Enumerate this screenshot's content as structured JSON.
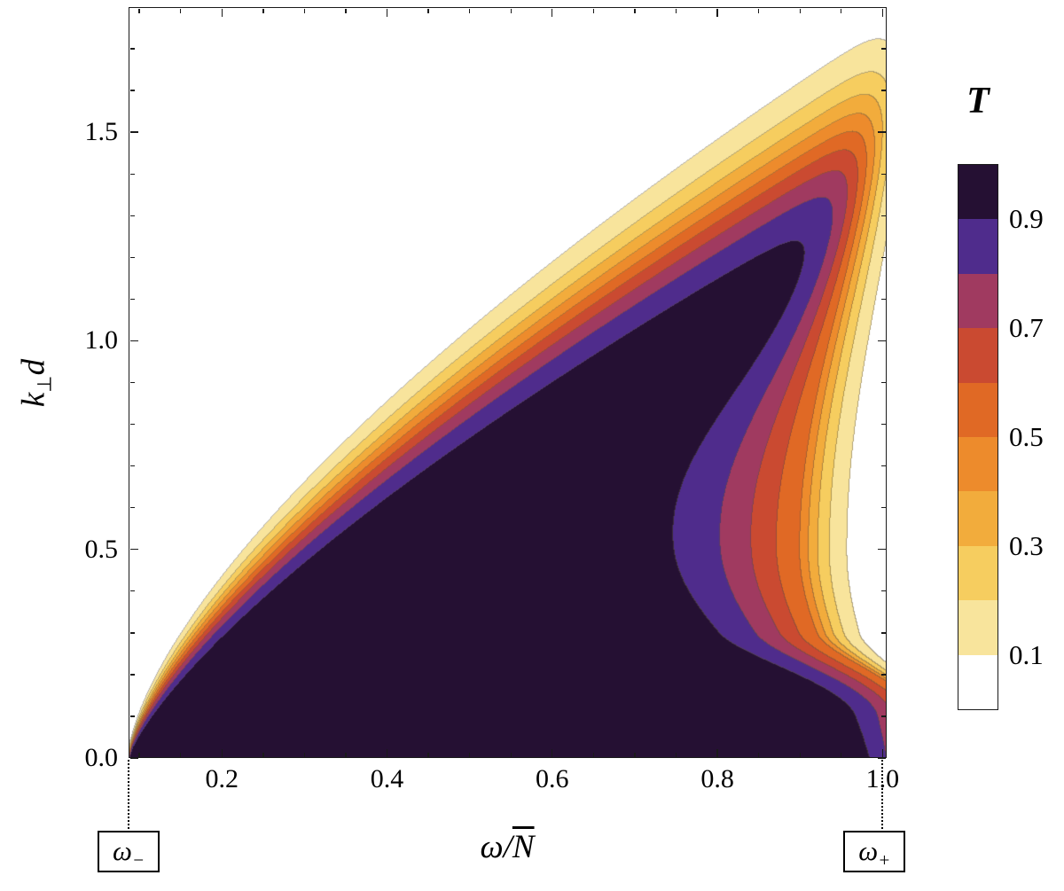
{
  "figure": {
    "background": "#ffffff"
  },
  "chart_data": {
    "type": "contour",
    "value_label": "T",
    "x": {
      "label_prefix": "ω/",
      "label_overlined": "N",
      "range": [
        0.087,
        1.005
      ],
      "ticks": [
        "0.2",
        "0.4",
        "0.6",
        "0.8",
        "1.0"
      ],
      "tick_values": [
        0.2,
        0.4,
        0.6,
        0.8,
        1.0
      ],
      "minor_step": 0.05
    },
    "y": {
      "label_k": "k",
      "label_sub": "⊥",
      "label_d": "d",
      "range": [
        0,
        1.8
      ],
      "ticks": [
        "0.0",
        "0.5",
        "1.0",
        "1.5"
      ],
      "tick_values": [
        0,
        0.5,
        1.0,
        1.5
      ],
      "minor_step": 0.1
    },
    "colorbar": {
      "title": "T",
      "labels": [
        "0.9",
        "0.7",
        "0.5",
        "0.3",
        "0.1"
      ],
      "label_values": [
        0.9,
        0.7,
        0.5,
        0.3,
        0.1
      ],
      "range": [
        0,
        1
      ]
    },
    "contour_levels": [
      0.1,
      0.2,
      0.3,
      0.4,
      0.5,
      0.6,
      0.7,
      0.8,
      0.9
    ],
    "band_colors": [
      "#ffffff",
      "#f8e49c",
      "#f6cd5f",
      "#f2ac3c",
      "#ed8b2c",
      "#e06925",
      "#ca4a31",
      "#a03a60",
      "#4f2c8c",
      "#251033"
    ],
    "contour_line_color": "#584E40",
    "contour_line_alpha": 0.45,
    "annotations": [
      {
        "name": "omega-minus",
        "label_base": "ω",
        "label_sub": "−",
        "x": 0.087
      },
      {
        "name": "omega-plus",
        "label_base": "ω",
        "label_sub": "+",
        "x": 1.0
      }
    ],
    "surface_model": {
      "description": "Transmission T(x,y) ≈ σ((f(x)−y)/w1(x))·σ((g(y)−x)/w2); dark wedge T>0.9 from (0.09,0) to (1.0,1.55); banded fan above the wedge; violet notch intruding near (0.7–0.9, 0.2–1.0); bands pinch at right edge x≈1.0",
      "f_origin": 0.087,
      "f_scale": 0.918,
      "f_amp": 1.57,
      "f_pow": 0.7,
      "w1_amp": 0.085,
      "w1_pow": 0.45,
      "w1_min": 0.008,
      "g_base": 1.04,
      "notch_depth": 0.14,
      "notch_center": 0.5,
      "notch_sigma_lo": 0.35,
      "notch_sigma_hi": 0.65,
      "ramp_lo": 0.1,
      "ramp_hi": 0.3,
      "wl_base": 0.015,
      "wl_amp": 0.055,
      "wl_center": 0.55,
      "wl_sigma": 0.3,
      "wr_base": 0.008,
      "wr_amp": 0.018
    }
  }
}
